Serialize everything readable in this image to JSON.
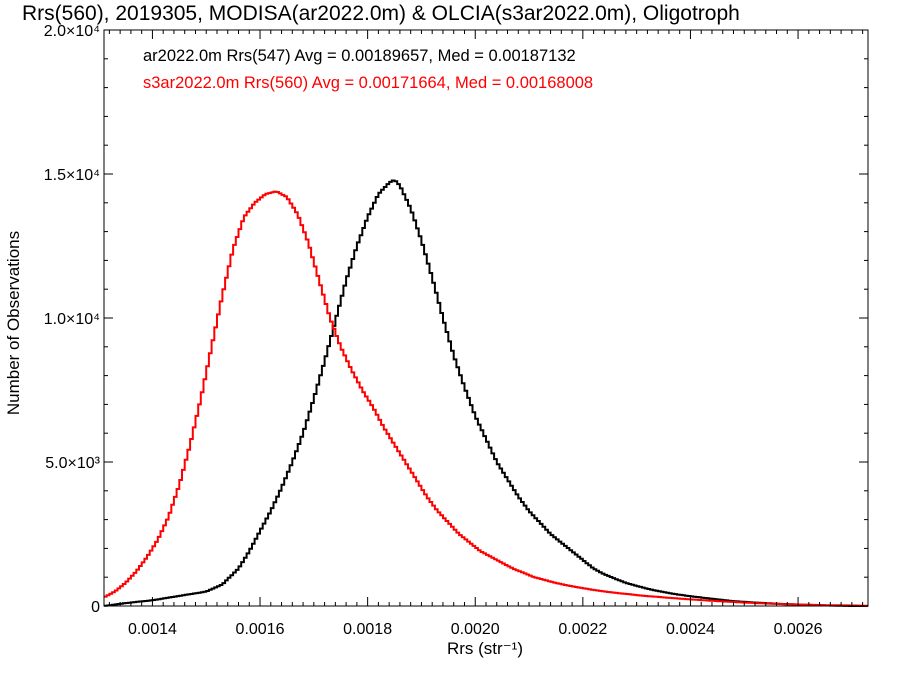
{
  "chart_data": {
    "type": "line",
    "title": "Rrs(560), 2019305, MODISA(ar2022.0m) & OLCIA(s3ar2022.0m), Oligotroph",
    "xlabel": "Rrs (str⁻¹)",
    "ylabel": "Number of Observations",
    "xlim": [
      0.00131,
      0.00273
    ],
    "ylim": [
      0,
      20000
    ],
    "xticks": [
      {
        "value": 0.0014,
        "label": "0.0014"
      },
      {
        "value": 0.0016,
        "label": "0.0016"
      },
      {
        "value": 0.0018,
        "label": "0.0018"
      },
      {
        "value": 0.002,
        "label": "0.0020"
      },
      {
        "value": 0.0022,
        "label": "0.0022"
      },
      {
        "value": 0.0024,
        "label": "0.0024"
      },
      {
        "value": 0.0026,
        "label": "0.0026"
      }
    ],
    "yticks": [
      {
        "value": 0,
        "label": "0"
      },
      {
        "value": 5000,
        "label": "5.0×10³"
      },
      {
        "value": 10000,
        "label": "1.0×10⁴"
      },
      {
        "value": 15000,
        "label": "1.5×10⁴"
      },
      {
        "value": 20000,
        "label": "2.0×10⁴"
      }
    ],
    "grid": false,
    "legend_position": "top-left",
    "series": [
      {
        "name": "ar2022.0m Rrs(547) Avg = 0.00189657, Med = 0.00187132",
        "color": "#000000",
        "x": [
          0.00131,
          0.00135,
          0.0014,
          0.00145,
          0.0015,
          0.00153,
          0.00156,
          0.00158,
          0.0016,
          0.00162,
          0.00164,
          0.00166,
          0.00168,
          0.0017,
          0.00172,
          0.00174,
          0.00176,
          0.00178,
          0.0018,
          0.00182,
          0.00184,
          0.00185,
          0.00186,
          0.00188,
          0.0019,
          0.00192,
          0.00194,
          0.00196,
          0.00198,
          0.002,
          0.00202,
          0.00204,
          0.00206,
          0.00208,
          0.0021,
          0.00212,
          0.00214,
          0.00216,
          0.00218,
          0.0022,
          0.00222,
          0.00224,
          0.00226,
          0.00228,
          0.0023,
          0.00232,
          0.00234,
          0.00236,
          0.00238,
          0.0024,
          0.00244,
          0.00248,
          0.00252,
          0.00256,
          0.0026,
          0.00265,
          0.0027,
          0.00273
        ],
        "y": [
          0,
          100,
          200,
          350,
          500,
          750,
          1300,
          1900,
          2600,
          3300,
          4100,
          5000,
          6000,
          7200,
          8500,
          9900,
          11300,
          12500,
          13500,
          14300,
          14700,
          14800,
          14600,
          13800,
          12700,
          11400,
          10000,
          8700,
          7600,
          6600,
          5800,
          5000,
          4400,
          3800,
          3300,
          2900,
          2500,
          2200,
          1900,
          1600,
          1300,
          1100,
          950,
          800,
          700,
          600,
          520,
          450,
          390,
          340,
          250,
          170,
          120,
          80,
          50,
          20,
          0,
          0
        ]
      },
      {
        "name": "s3ar2022.0m Rrs(560) Avg = 0.00171664, Med = 0.00168008",
        "color": "#ff0000",
        "x": [
          0.00131,
          0.00133,
          0.00135,
          0.00137,
          0.00139,
          0.00141,
          0.00143,
          0.00145,
          0.00147,
          0.00149,
          0.00151,
          0.00153,
          0.00155,
          0.00157,
          0.00159,
          0.00161,
          0.00163,
          0.00164,
          0.00165,
          0.00167,
          0.00169,
          0.00171,
          0.00173,
          0.00175,
          0.00177,
          0.00179,
          0.00181,
          0.00183,
          0.00185,
          0.00187,
          0.00189,
          0.00191,
          0.00193,
          0.00195,
          0.00197,
          0.00199,
          0.00201,
          0.00203,
          0.00205,
          0.00207,
          0.00209,
          0.00211,
          0.00213,
          0.00215,
          0.00217,
          0.00219,
          0.00221,
          0.00223,
          0.00225,
          0.00227,
          0.00229,
          0.00231,
          0.00235,
          0.0024,
          0.00245,
          0.0025,
          0.00255,
          0.0026,
          0.00265,
          0.00273
        ],
        "y": [
          300,
          500,
          800,
          1200,
          1700,
          2300,
          3100,
          4200,
          5600,
          7200,
          9000,
          10800,
          12400,
          13500,
          14000,
          14300,
          14400,
          14300,
          14200,
          13600,
          12600,
          11300,
          10000,
          9000,
          8200,
          7500,
          6900,
          6200,
          5600,
          5000,
          4400,
          3800,
          3300,
          2900,
          2500,
          2200,
          1900,
          1700,
          1500,
          1300,
          1150,
          1000,
          900,
          800,
          720,
          650,
          590,
          530,
          480,
          440,
          400,
          360,
          300,
          230,
          170,
          120,
          80,
          50,
          30,
          10
        ]
      }
    ]
  }
}
